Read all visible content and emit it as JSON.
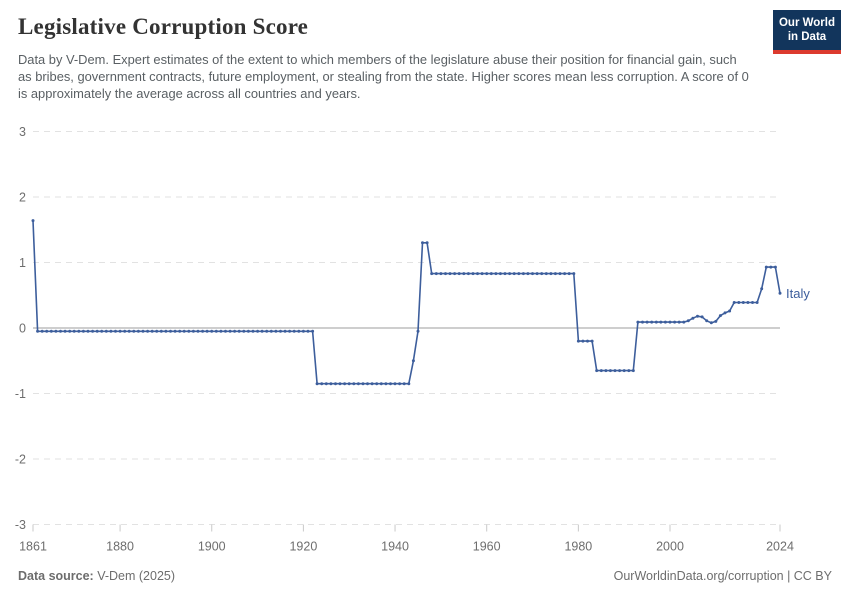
{
  "header": {
    "title": "Legislative Corruption Score",
    "subtitle": "Data by V-Dem. Expert estimates of the extent to which members of the legislature abuse their position for financial gain, such as bribes, government contracts, future employment, or stealing from the state. Higher scores mean less corruption. A score of 0 is approximately the average across all countries and years.",
    "logo": {
      "line1": "Our World",
      "line2": "in Data",
      "bg": "#12355c",
      "stripe": "#dc3a2e"
    }
  },
  "chart_data": {
    "type": "line",
    "title": "Legislative Corruption Score",
    "series_name": "Italy",
    "x_range": [
      1861,
      2024
    ],
    "ylim": [
      -3,
      3
    ],
    "y_ticks": [
      3,
      2,
      1,
      0,
      -1,
      -2,
      -3
    ],
    "x_ticks": [
      1861,
      1880,
      1900,
      1920,
      1940,
      1960,
      1980,
      2000,
      2024
    ],
    "grid": true,
    "legend_position": "right-of-line",
    "line_color": "#3d5e9c",
    "axis_label_color": "#6e6e6e",
    "segments": [
      {
        "from": 1861,
        "to": 1861,
        "value": 1.64
      },
      {
        "from": 1862,
        "to": 1922,
        "value": -0.05
      },
      {
        "from": 1923,
        "to": 1943,
        "value": -0.85
      },
      {
        "from": 1944,
        "to": 1944,
        "value": -0.5
      },
      {
        "from": 1945,
        "to": 1945,
        "value": -0.05
      },
      {
        "from": 1946,
        "to": 1947,
        "value": 1.3
      },
      {
        "from": 1948,
        "to": 1979,
        "value": 0.83
      },
      {
        "from": 1980,
        "to": 1983,
        "value": -0.2
      },
      {
        "from": 1984,
        "to": 1992,
        "value": -0.65
      },
      {
        "from": 1993,
        "to": 2003,
        "value": 0.09
      },
      {
        "from": 2004,
        "to": 2004,
        "value": 0.11
      },
      {
        "from": 2005,
        "to": 2005,
        "value": 0.15
      },
      {
        "from": 2006,
        "to": 2006,
        "value": 0.18
      },
      {
        "from": 2007,
        "to": 2007,
        "value": 0.17
      },
      {
        "from": 2008,
        "to": 2008,
        "value": 0.11
      },
      {
        "from": 2009,
        "to": 2009,
        "value": 0.08
      },
      {
        "from": 2010,
        "to": 2010,
        "value": 0.1
      },
      {
        "from": 2011,
        "to": 2011,
        "value": 0.19
      },
      {
        "from": 2012,
        "to": 2012,
        "value": 0.23
      },
      {
        "from": 2013,
        "to": 2013,
        "value": 0.26
      },
      {
        "from": 2014,
        "to": 2019,
        "value": 0.39
      },
      {
        "from": 2020,
        "to": 2020,
        "value": 0.6
      },
      {
        "from": 2021,
        "to": 2023,
        "value": 0.93
      },
      {
        "from": 2024,
        "to": 2024,
        "value": 0.53
      }
    ]
  },
  "footer": {
    "source_label": "Data source:",
    "source_value": "V-Dem (2025)",
    "link": "OurWorldinData.org/corruption | CC BY"
  }
}
